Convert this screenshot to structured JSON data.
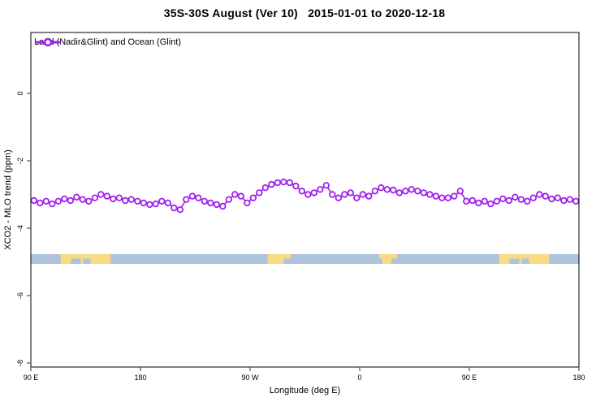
{
  "chart_data": {
    "type": "line",
    "title": "35S-30S August (Ver 10)   2015-01-01 to 2020-12-18",
    "xlabel": "Longitude (deg E)",
    "ylabel": "XCO2 - MLO trend (ppm)",
    "xlim": [
      90,
      540
    ],
    "ylim": [
      -8.1,
      1.8
    ],
    "grid": false,
    "legend": {
      "label": "Land (Nadir&Glint) and Ocean (Glint)",
      "position": "top-left"
    },
    "x_ticks": [
      {
        "label": "90 E",
        "lon": 90
      },
      {
        "label": "180",
        "lon": 180
      },
      {
        "label": "90 W",
        "lon": 270
      },
      {
        "label": "0",
        "lon": 360
      },
      {
        "label": "90 E",
        "lon": 450
      },
      {
        "label": "180",
        "lon": 540
      }
    ],
    "y_ticks": [
      {
        "label": "0",
        "value": 0
      },
      {
        "label": "-2",
        "value": -2
      },
      {
        "label": "-4",
        "value": -4
      },
      {
        "label": "-6",
        "value": -6
      },
      {
        "label": "-8",
        "value": -8
      }
    ],
    "series": [
      {
        "name": "Land (Nadir&Glint) and Ocean (Glint)",
        "color": "#A020F0",
        "marker": "open-circle",
        "x": [
          92.5,
          97.5,
          102.5,
          107.5,
          112.5,
          117.5,
          122.5,
          127.5,
          132.5,
          137.5,
          142.5,
          147.5,
          152.5,
          157.5,
          162.5,
          167.5,
          172.5,
          177.5,
          182.5,
          187.5,
          192.5,
          197.5,
          202.5,
          207.5,
          212.5,
          217.5,
          222.5,
          227.5,
          232.5,
          237.5,
          242.5,
          247.5,
          252.5,
          257.5,
          262.5,
          267.5,
          272.5,
          277.5,
          282.5,
          287.5,
          292.5,
          297.5,
          302.5,
          307.5,
          312.5,
          317.5,
          322.5,
          327.5,
          332.5,
          337.5,
          342.5,
          347.5,
          352.5,
          357.5,
          362.5,
          367.5,
          372.5,
          377.5,
          382.5,
          387.5,
          392.5,
          397.5,
          402.5,
          407.5,
          412.5,
          417.5,
          422.5,
          427.5,
          432.5,
          437.5,
          442.5,
          447.5,
          452.5,
          457.5,
          462.5,
          467.5,
          472.5,
          477.5,
          482.5,
          487.5,
          492.5,
          497.5,
          502.5,
          507.5,
          512.5,
          517.5,
          522.5,
          527.5,
          532.5,
          537.5
        ],
        "y": [
          -3.18,
          -3.25,
          -3.2,
          -3.28,
          -3.2,
          -3.13,
          -3.18,
          -3.08,
          -3.15,
          -3.2,
          -3.1,
          -3.0,
          -3.05,
          -3.13,
          -3.1,
          -3.18,
          -3.15,
          -3.2,
          -3.25,
          -3.3,
          -3.28,
          -3.2,
          -3.25,
          -3.4,
          -3.45,
          -3.15,
          -3.05,
          -3.1,
          -3.2,
          -3.25,
          -3.3,
          -3.35,
          -3.15,
          -3.0,
          -3.05,
          -3.25,
          -3.1,
          -2.95,
          -2.8,
          -2.7,
          -2.65,
          -2.63,
          -2.65,
          -2.75,
          -2.9,
          -3.0,
          -2.95,
          -2.85,
          -2.73,
          -3.0,
          -3.1,
          -3.0,
          -2.95,
          -3.1,
          -3.0,
          -3.05,
          -2.9,
          -2.8,
          -2.85,
          -2.87,
          -2.95,
          -2.9,
          -2.85,
          -2.9,
          -2.95,
          -3.0,
          -3.05,
          -3.1,
          -3.1,
          -3.05,
          -2.9,
          -3.2,
          -3.18,
          -3.25,
          -3.2,
          -3.28,
          -3.2,
          -3.13,
          -3.18,
          -3.08,
          -3.15,
          -3.2,
          -3.1,
          -3.0,
          -3.05,
          -3.13,
          -3.1,
          -3.18,
          -3.15,
          -3.2
        ]
      }
    ],
    "map_strip": {
      "description": "land/ocean mask strip along the 35S-30S latitude band",
      "value_top": -4.77,
      "value_bottom": -5.06,
      "ocean_color": "#AEC3DE",
      "land_color": "#FADB82",
      "land_segments": [
        {
          "name": "Australia",
          "from": 114.5,
          "to": 155.5,
          "ocean_notches": [
            [
              123,
              131
            ],
            [
              133,
              139
            ]
          ]
        },
        {
          "name": "South America",
          "from": 284.5,
          "to": 303.5,
          "ocean_notches": [
            [
              297.5,
              303.5
            ]
          ]
        },
        {
          "name": "Southern Africa",
          "from": 376.0,
          "to": 390.5,
          "ocean_notches": [
            [
              376,
              378.5
            ],
            [
              386,
              390.5
            ]
          ]
        },
        {
          "name": "Australia (wrap)",
          "from": 474.5,
          "to": 515.5,
          "ocean_notches": [
            [
              483,
              491
            ],
            [
              493,
              499
            ]
          ]
        }
      ]
    },
    "colors": {
      "axis": "#000000",
      "tick": "#555555",
      "series": "#A020F0"
    }
  }
}
